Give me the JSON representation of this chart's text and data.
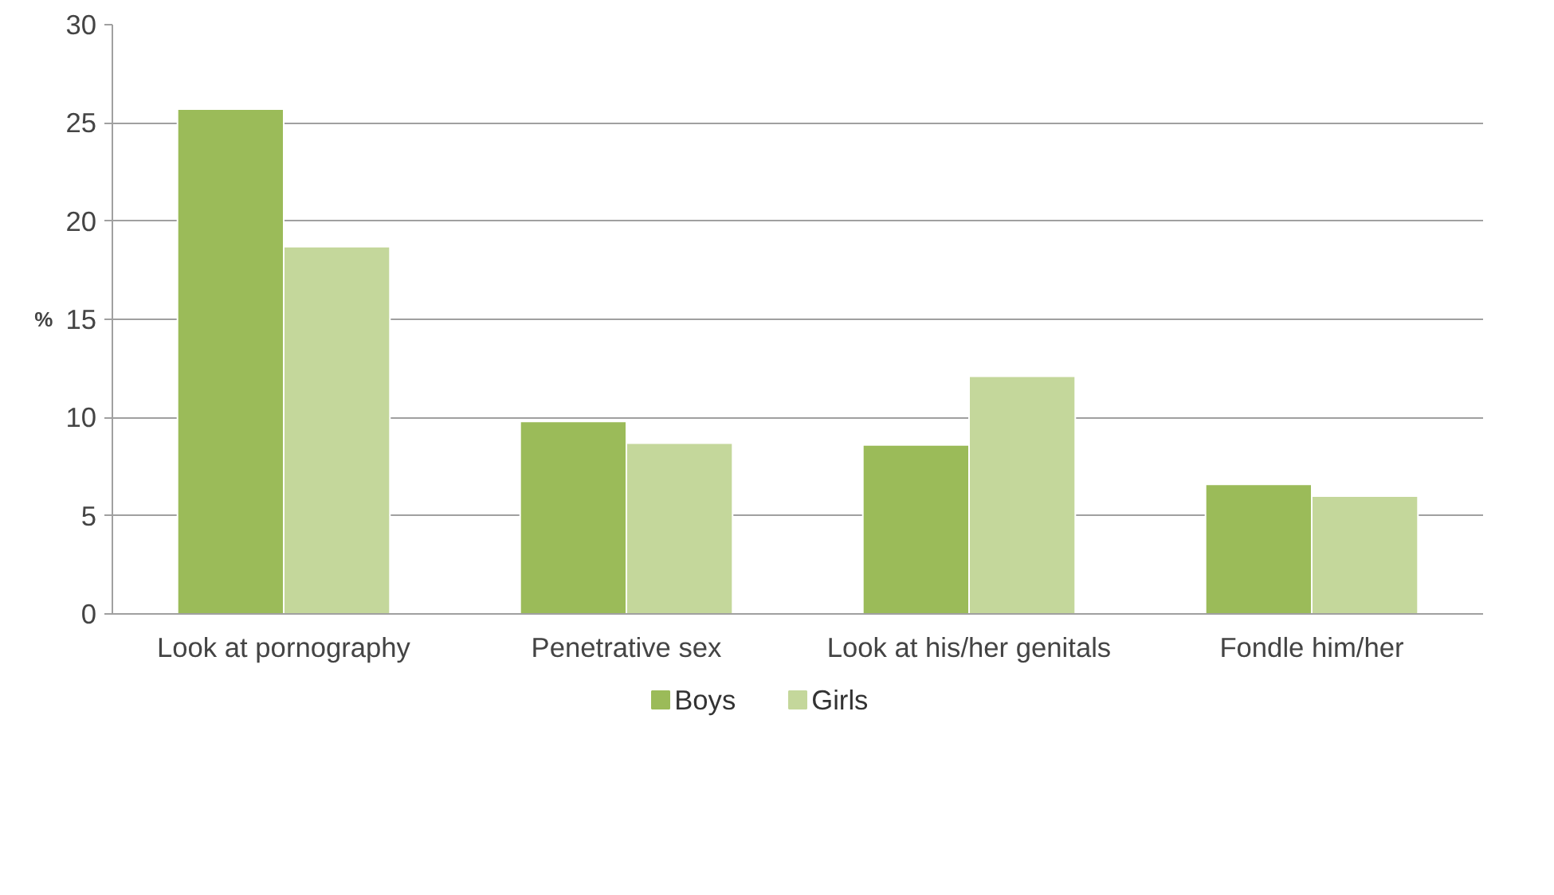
{
  "chart_data": {
    "type": "bar",
    "ylabel": "%",
    "categories": [
      "Look at pornography",
      "Penetrative sex",
      "Look at his/her genitals",
      "Fondle him/her"
    ],
    "series": [
      {
        "name": "Boys",
        "color": "#9bbb59",
        "values": [
          25.7,
          9.8,
          8.6,
          6.6
        ]
      },
      {
        "name": "Girls",
        "color": "#c4d79b",
        "values": [
          18.7,
          8.7,
          12.1,
          6.0
        ]
      }
    ],
    "ylim": [
      0,
      30
    ],
    "yticks": [
      0,
      5,
      10,
      15,
      20,
      25,
      30
    ],
    "grid": "y",
    "legend": "bottom"
  }
}
